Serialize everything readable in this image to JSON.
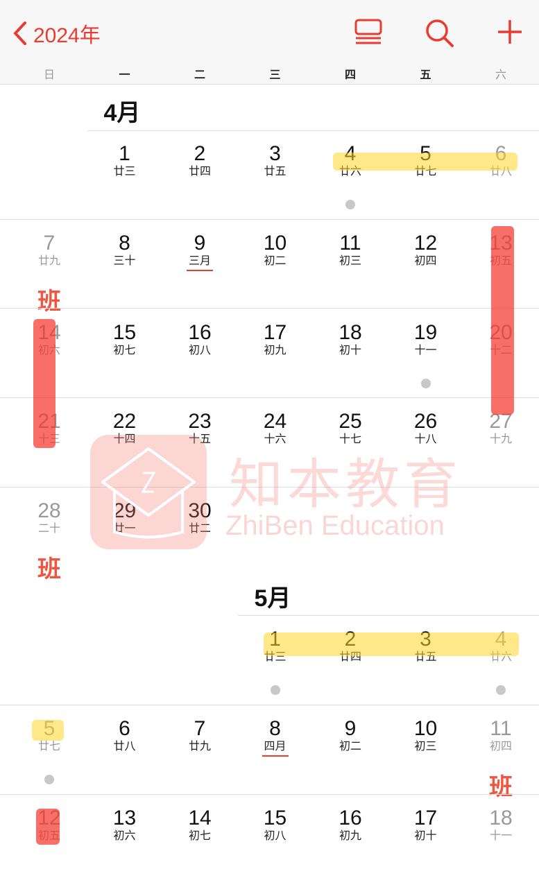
{
  "header": {
    "back_label": "2024年",
    "accent": "#ea3b30",
    "icons": [
      "list-icon",
      "search-icon",
      "plus-icon"
    ]
  },
  "weekdays": [
    "日",
    "一",
    "二",
    "三",
    "四",
    "五",
    "六"
  ],
  "months": [
    {
      "title": "4月",
      "start_col": 1,
      "weeks": [
        [
          null,
          {
            "d": "1",
            "l": "廿三"
          },
          {
            "d": "2",
            "l": "廿四"
          },
          {
            "d": "3",
            "l": "廿五"
          },
          {
            "d": "4",
            "l": "廿六",
            "dot": true
          },
          {
            "d": "5",
            "l": "廿七"
          },
          {
            "d": "6",
            "l": "廿八"
          }
        ],
        [
          {
            "d": "7",
            "l": "廿九",
            "ban": "班"
          },
          {
            "d": "8",
            "l": "三十"
          },
          {
            "d": "9",
            "l": "三月",
            "ul": true
          },
          {
            "d": "10",
            "l": "初二"
          },
          {
            "d": "11",
            "l": "初三"
          },
          {
            "d": "12",
            "l": "初四"
          },
          {
            "d": "13",
            "l": "初五"
          }
        ],
        [
          {
            "d": "14",
            "l": "初六"
          },
          {
            "d": "15",
            "l": "初七"
          },
          {
            "d": "16",
            "l": "初八"
          },
          {
            "d": "17",
            "l": "初九"
          },
          {
            "d": "18",
            "l": "初十"
          },
          {
            "d": "19",
            "l": "十一",
            "dot": true
          },
          {
            "d": "20",
            "l": "十二"
          }
        ],
        [
          {
            "d": "21",
            "l": "十三"
          },
          {
            "d": "22",
            "l": "十四"
          },
          {
            "d": "23",
            "l": "十五"
          },
          {
            "d": "24",
            "l": "十六"
          },
          {
            "d": "25",
            "l": "十七"
          },
          {
            "d": "26",
            "l": "十八"
          },
          {
            "d": "27",
            "l": "十九"
          }
        ],
        [
          {
            "d": "28",
            "l": "二十",
            "ban": "班"
          },
          {
            "d": "29",
            "l": "廿一"
          },
          {
            "d": "30",
            "l": "廿二"
          },
          null,
          null,
          null,
          null
        ]
      ]
    },
    {
      "title": "5月",
      "start_col": 3,
      "weeks": [
        [
          null,
          null,
          null,
          {
            "d": "1",
            "l": "廿三",
            "dot": true
          },
          {
            "d": "2",
            "l": "廿四"
          },
          {
            "d": "3",
            "l": "廿五"
          },
          {
            "d": "4",
            "l": "廿六",
            "dot": true
          }
        ],
        [
          {
            "d": "5",
            "l": "廿七",
            "dot": true
          },
          {
            "d": "6",
            "l": "廿八"
          },
          {
            "d": "7",
            "l": "廿九"
          },
          {
            "d": "8",
            "l": "四月",
            "ul": true
          },
          {
            "d": "9",
            "l": "初二"
          },
          {
            "d": "10",
            "l": "初三"
          },
          {
            "d": "11",
            "l": "初四",
            "ban": "班"
          }
        ],
        [
          {
            "d": "12",
            "l": "初五"
          },
          {
            "d": "13",
            "l": "初六"
          },
          {
            "d": "14",
            "l": "初七"
          },
          {
            "d": "15",
            "l": "初八"
          },
          {
            "d": "16",
            "l": "初九"
          },
          {
            "d": "17",
            "l": "初十"
          },
          {
            "d": "18",
            "l": "十一"
          }
        ]
      ]
    }
  ],
  "watermark": {
    "cn": "知本教育",
    "en": "ZhiBen Education"
  },
  "highlight_colors": {
    "yellow": "#ffd628",
    "red": "#f53228"
  }
}
